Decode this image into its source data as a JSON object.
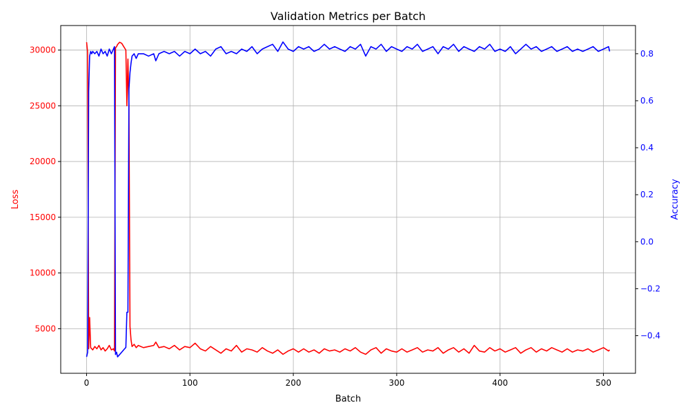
{
  "chart_data": {
    "type": "line",
    "title": "Validation Metrics per Batch",
    "xlabel": "Batch",
    "xlim": [
      -25,
      531
    ],
    "xticks": [
      0,
      100,
      200,
      300,
      400,
      500
    ],
    "grid": true,
    "left_axis": {
      "label": "Loss",
      "color": "#ff0000",
      "ylim": [
        1000,
        32200
      ],
      "ticks": [
        5000,
        10000,
        15000,
        20000,
        25000,
        30000
      ]
    },
    "right_axis": {
      "label": "Accuracy",
      "color": "#0000ff",
      "ylim": [
        -0.56,
        0.92
      ],
      "ticks": [
        -0.4,
        -0.2,
        0.0,
        0.2,
        0.4,
        0.6,
        0.8
      ],
      "tick_labels": [
        "−0.4",
        "−0.2",
        "0.0",
        "0.2",
        "0.4",
        "0.6",
        "0.8"
      ]
    },
    "series": [
      {
        "axis": "left",
        "color": "#ff0000",
        "x": [
          0,
          1,
          2,
          3,
          4,
          5,
          6,
          8,
          10,
          12,
          14,
          16,
          18,
          20,
          22,
          24,
          26,
          27,
          28,
          29,
          30,
          32,
          34,
          36,
          38,
          39,
          40,
          41,
          42,
          43,
          44,
          46,
          48,
          50,
          55,
          60,
          65,
          67,
          70,
          75,
          80,
          85,
          90,
          95,
          100,
          105,
          110,
          115,
          120,
          125,
          130,
          135,
          140,
          145,
          150,
          155,
          160,
          165,
          170,
          175,
          180,
          185,
          190,
          195,
          200,
          205,
          210,
          215,
          220,
          225,
          230,
          235,
          240,
          245,
          250,
          255,
          260,
          265,
          270,
          275,
          280,
          285,
          290,
          295,
          300,
          305,
          310,
          315,
          320,
          325,
          330,
          335,
          340,
          345,
          350,
          355,
          360,
          365,
          370,
          375,
          380,
          385,
          390,
          395,
          400,
          405,
          410,
          415,
          420,
          425,
          430,
          435,
          440,
          445,
          450,
          455,
          460,
          465,
          470,
          475,
          480,
          485,
          490,
          495,
          500,
          505,
          506
        ],
        "values": [
          30700,
          29800,
          3200,
          6000,
          3300,
          3200,
          3100,
          3400,
          3200,
          3500,
          3100,
          3300,
          3000,
          3200,
          3500,
          3100,
          3200,
          3000,
          30200,
          30300,
          30500,
          30700,
          30600,
          30300,
          30000,
          25000,
          29200,
          25000,
          5200,
          4000,
          3400,
          3600,
          3300,
          3500,
          3300,
          3400,
          3500,
          3800,
          3300,
          3400,
          3200,
          3500,
          3100,
          3400,
          3300,
          3700,
          3200,
          3000,
          3400,
          3100,
          2800,
          3200,
          3000,
          3500,
          2900,
          3200,
          3100,
          2900,
          3300,
          3000,
          2800,
          3100,
          2700,
          3000,
          3200,
          2900,
          3200,
          2900,
          3100,
          2800,
          3200,
          3000,
          3100,
          2900,
          3200,
          3000,
          3300,
          2900,
          2700,
          3100,
          3300,
          2800,
          3200,
          3000,
          2900,
          3200,
          2900,
          3100,
          3300,
          2900,
          3100,
          3000,
          3300,
          2800,
          3100,
          3300,
          2900,
          3200,
          2800,
          3500,
          3000,
          2900,
          3300,
          3000,
          3200,
          2900,
          3100,
          3300,
          2800,
          3100,
          3300,
          2900,
          3200,
          3000,
          3300,
          3100,
          2900,
          3200,
          2900,
          3100,
          3000,
          3200,
          2900,
          3100,
          3300,
          3000,
          3100
        ]
      },
      {
        "axis": "right",
        "color": "#0000ff",
        "x": [
          0,
          1,
          2,
          3,
          4,
          5,
          6,
          8,
          10,
          12,
          14,
          16,
          18,
          20,
          22,
          24,
          26,
          27,
          28,
          29,
          30,
          32,
          34,
          36,
          38,
          39,
          40,
          41,
          42,
          43,
          44,
          46,
          48,
          50,
          55,
          60,
          65,
          67,
          70,
          75,
          80,
          85,
          90,
          95,
          100,
          105,
          110,
          115,
          120,
          125,
          130,
          135,
          140,
          145,
          150,
          155,
          160,
          165,
          170,
          175,
          180,
          185,
          190,
          195,
          200,
          205,
          210,
          215,
          220,
          225,
          230,
          235,
          240,
          245,
          250,
          255,
          260,
          265,
          270,
          275,
          280,
          285,
          290,
          295,
          300,
          305,
          310,
          315,
          320,
          325,
          330,
          335,
          340,
          345,
          350,
          355,
          360,
          365,
          370,
          375,
          380,
          385,
          390,
          395,
          400,
          405,
          410,
          415,
          420,
          425,
          430,
          435,
          440,
          445,
          450,
          455,
          460,
          465,
          470,
          475,
          480,
          485,
          490,
          495,
          500,
          505,
          506
        ],
        "values": [
          -0.49,
          -0.47,
          0.64,
          0.79,
          0.81,
          0.8,
          0.81,
          0.8,
          0.81,
          0.79,
          0.82,
          0.8,
          0.81,
          0.79,
          0.82,
          0.8,
          0.82,
          0.83,
          -0.48,
          -0.47,
          -0.49,
          -0.48,
          -0.47,
          -0.46,
          -0.45,
          -0.3,
          -0.3,
          0.65,
          0.72,
          0.76,
          0.79,
          0.8,
          0.78,
          0.8,
          0.8,
          0.79,
          0.8,
          0.77,
          0.8,
          0.81,
          0.8,
          0.81,
          0.79,
          0.81,
          0.8,
          0.82,
          0.8,
          0.81,
          0.79,
          0.82,
          0.83,
          0.8,
          0.81,
          0.8,
          0.82,
          0.81,
          0.83,
          0.8,
          0.82,
          0.83,
          0.84,
          0.81,
          0.85,
          0.82,
          0.81,
          0.83,
          0.82,
          0.83,
          0.81,
          0.82,
          0.84,
          0.82,
          0.83,
          0.82,
          0.81,
          0.83,
          0.82,
          0.84,
          0.79,
          0.83,
          0.82,
          0.84,
          0.81,
          0.83,
          0.82,
          0.81,
          0.83,
          0.82,
          0.84,
          0.81,
          0.82,
          0.83,
          0.8,
          0.83,
          0.82,
          0.84,
          0.81,
          0.83,
          0.82,
          0.81,
          0.83,
          0.82,
          0.84,
          0.81,
          0.82,
          0.81,
          0.83,
          0.8,
          0.82,
          0.84,
          0.82,
          0.83,
          0.81,
          0.82,
          0.83,
          0.81,
          0.82,
          0.83,
          0.81,
          0.82,
          0.81,
          0.82,
          0.83,
          0.81,
          0.82,
          0.83,
          0.81
        ]
      }
    ]
  }
}
